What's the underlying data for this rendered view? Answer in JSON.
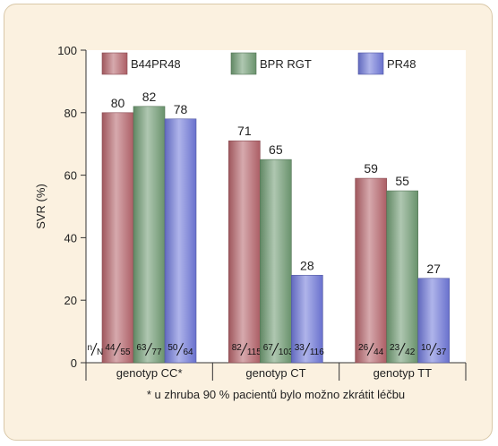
{
  "chart_data": {
    "type": "bar",
    "ylabel": "SVR (%)",
    "ylim": [
      0,
      100
    ],
    "yticks": [
      0,
      20,
      40,
      60,
      80,
      100
    ],
    "categories": [
      "genotyp CC*",
      "genotyp CT",
      "genotyp TT"
    ],
    "series": [
      {
        "name": "B44PR48",
        "color": "#b5636a",
        "values": [
          80,
          71,
          59
        ],
        "fractions": [
          [
            "44",
            "55"
          ],
          [
            "82",
            "115"
          ],
          [
            "26",
            "44"
          ]
        ]
      },
      {
        "name": "BPR RGT",
        "color": "#6e9a72",
        "values": [
          82,
          65,
          55
        ],
        "fractions": [
          [
            "63",
            "77"
          ],
          [
            "67",
            "103"
          ],
          [
            "23",
            "42"
          ]
        ]
      },
      {
        "name": "PR48",
        "color": "#6e77d8",
        "values": [
          78,
          28,
          27
        ],
        "fractions": [
          [
            "50",
            "64"
          ],
          [
            "33",
            "116"
          ],
          [
            "10",
            "37"
          ]
        ]
      }
    ],
    "fraction_key": [
      "n",
      "N"
    ],
    "legend_position": "top",
    "grid": false,
    "footnote": "* u zhruba 90 % pacientů bylo možno zkrátit léčbu"
  }
}
